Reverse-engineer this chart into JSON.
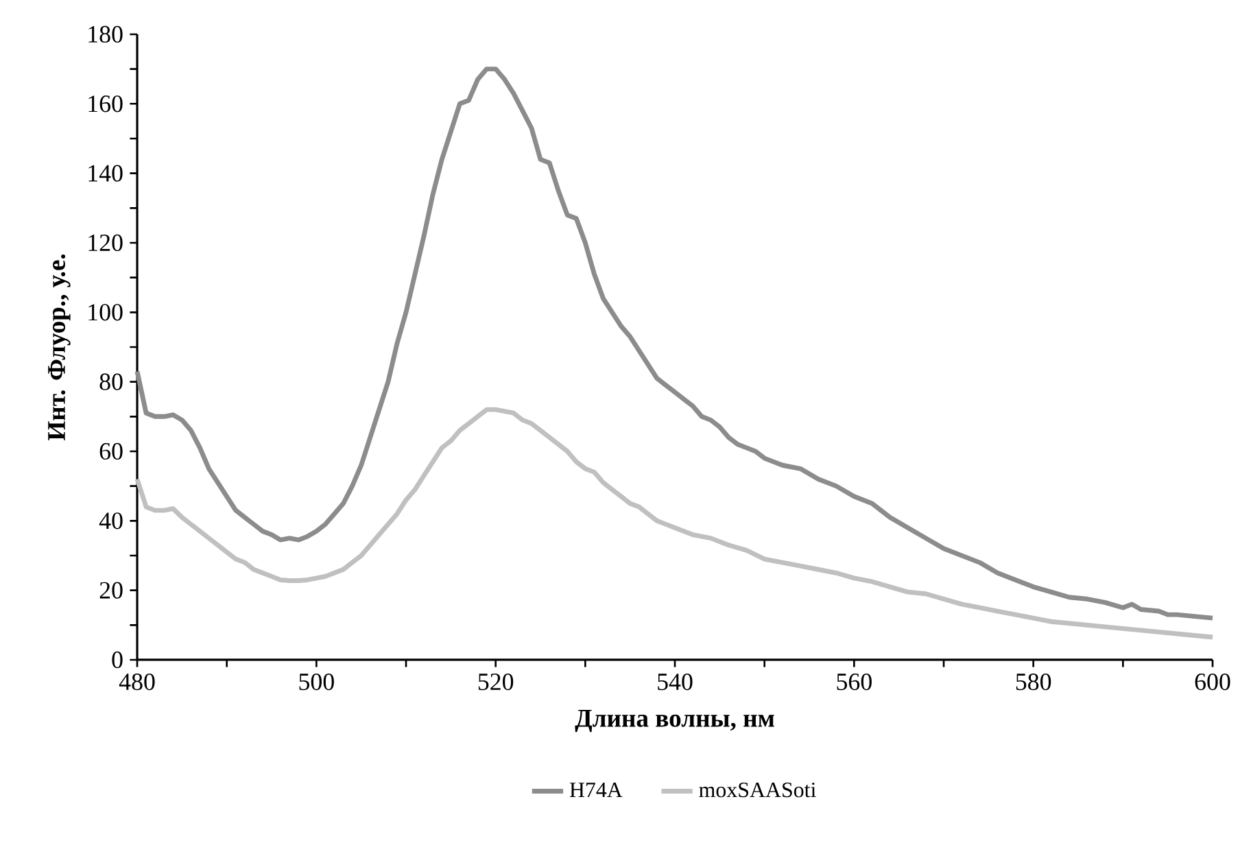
{
  "chart_data": {
    "type": "line",
    "xlabel": "Длина волны, нм",
    "ylabel": "Инт. Флуор., у.е.",
    "xlim": [
      480,
      600
    ],
    "ylim": [
      0,
      180
    ],
    "xticks": [
      480,
      {
        "value": 490,
        "label": null
      },
      500,
      {
        "value": 510,
        "label": null
      },
      520,
      {
        "value": 530,
        "label": null
      },
      540,
      {
        "value": 550,
        "label": null
      },
      560,
      {
        "value": 570,
        "label": null
      },
      580,
      {
        "value": 590,
        "label": null
      },
      600
    ],
    "yticks": [
      0,
      {
        "value": 10,
        "label": null
      },
      20,
      {
        "value": 30,
        "label": null
      },
      40,
      {
        "value": 50,
        "label": null
      },
      60,
      {
        "value": 70,
        "label": null
      },
      80,
      {
        "value": 90,
        "label": null
      },
      100,
      {
        "value": 110,
        "label": null
      },
      120,
      {
        "value": 130,
        "label": null
      },
      140,
      {
        "value": 150,
        "label": null
      },
      160,
      {
        "value": 170,
        "label": null
      },
      180
    ],
    "grid": false,
    "legend": "bottom",
    "marker": "none",
    "line_style": "solid",
    "series": [
      {
        "name": "H74A",
        "color": "#8c8c8c",
        "x": [
          480,
          481,
          482,
          483,
          484,
          485,
          486,
          487,
          488,
          489,
          490,
          491,
          492,
          493,
          494,
          495,
          496,
          497,
          498,
          499,
          500,
          501,
          502,
          503,
          504,
          505,
          506,
          507,
          508,
          509,
          510,
          511,
          512,
          513,
          514,
          515,
          516,
          517,
          518,
          519,
          520,
          521,
          522,
          523,
          524,
          525,
          526,
          527,
          528,
          529,
          530,
          531,
          532,
          533,
          534,
          535,
          536,
          537,
          538,
          539,
          540,
          541,
          542,
          543,
          544,
          545,
          546,
          547,
          548,
          549,
          550,
          552,
          554,
          556,
          558,
          560,
          562,
          564,
          566,
          568,
          570,
          572,
          574,
          576,
          578,
          580,
          582,
          584,
          586,
          588,
          590,
          591,
          592,
          594,
          595,
          596,
          598,
          600
        ],
        "values": [
          83,
          71,
          70,
          70,
          70.5,
          69,
          66,
          61,
          55,
          51,
          47,
          43,
          41,
          39,
          37,
          36,
          34.5,
          35,
          34.5,
          35.5,
          37,
          39,
          42,
          45,
          50,
          56,
          64,
          72,
          80,
          91,
          100,
          111,
          122,
          134,
          144,
          152,
          160,
          161,
          167,
          170,
          170,
          167,
          163,
          158,
          153,
          144,
          143,
          135,
          128,
          127,
          120,
          111,
          104,
          100,
          96,
          93,
          89,
          85,
          81,
          79,
          77,
          75,
          73,
          70,
          69,
          67,
          64,
          62,
          61,
          60,
          58,
          56,
          55,
          52,
          50,
          47,
          45,
          41,
          38,
          35,
          32,
          30,
          28,
          25,
          23,
          21,
          19.5,
          18,
          17.5,
          16.5,
          15,
          16,
          14.5,
          14,
          13,
          13,
          12.5,
          12
        ]
      },
      {
        "name": "moxSAASoti",
        "color": "#c0c0c0",
        "x": [
          480,
          481,
          482,
          483,
          484,
          485,
          486,
          487,
          488,
          489,
          490,
          491,
          492,
          493,
          494,
          495,
          496,
          497,
          498,
          499,
          500,
          501,
          502,
          503,
          504,
          505,
          506,
          507,
          508,
          509,
          510,
          511,
          512,
          513,
          514,
          515,
          516,
          517,
          518,
          519,
          520,
          521,
          522,
          523,
          524,
          525,
          526,
          527,
          528,
          529,
          530,
          531,
          532,
          533,
          534,
          535,
          536,
          537,
          538,
          539,
          540,
          542,
          544,
          546,
          548,
          550,
          552,
          554,
          556,
          558,
          560,
          562,
          564,
          566,
          568,
          570,
          572,
          574,
          576,
          578,
          580,
          582,
          584,
          586,
          588,
          590,
          592,
          594,
          596,
          598,
          600
        ],
        "values": [
          52,
          44,
          43,
          43,
          43.5,
          41,
          39,
          37,
          35,
          33,
          31,
          29,
          28,
          26,
          25,
          24,
          23,
          22.8,
          22.8,
          23,
          23.5,
          24,
          25,
          26,
          28,
          30,
          33,
          36,
          39,
          42,
          46,
          49,
          53,
          57,
          61,
          63,
          66,
          68,
          70,
          72,
          72,
          71.5,
          71,
          69,
          68,
          66,
          64,
          62,
          60,
          57,
          55,
          54,
          51,
          49,
          47,
          45,
          44,
          42,
          40,
          39,
          38,
          36,
          35,
          33,
          31.5,
          29,
          28,
          27,
          26,
          25,
          23.5,
          22.5,
          21,
          19.5,
          19,
          17.5,
          16,
          15,
          14,
          13,
          12,
          11,
          10.5,
          10,
          9.5,
          9,
          8.5,
          8,
          7.5,
          7,
          6.5
        ]
      }
    ]
  }
}
